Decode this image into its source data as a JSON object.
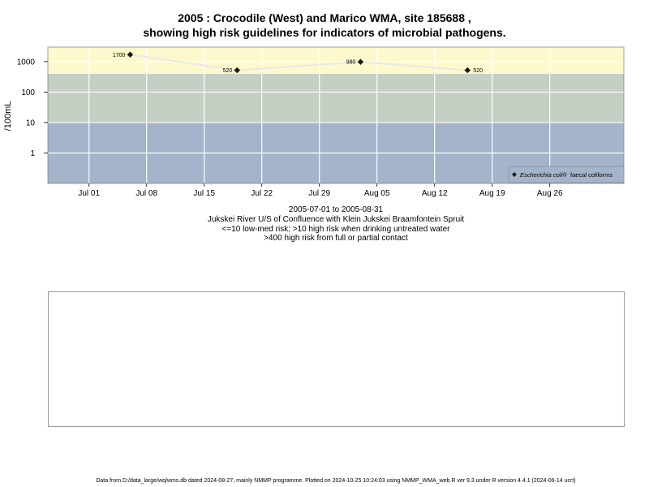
{
  "title": {
    "line1": "2005 : Crocodile (West) and Marico WMA, site 185688 ,",
    "line2": "showing high risk guidelines for indicators of microbial pathogens."
  },
  "subtitles": {
    "date_range": "2005-07-01 to 2005-08-31",
    "site_description": "Jukskei River U/S of Confluence with Klein Jukskei Braamfontein Spruit",
    "guideline_low": "<=10 low-med risk; >10 high risk when drinking untreated water",
    "guideline_high": ">400 high risk from full or partial contact"
  },
  "footer": "Data from D:/data_large/wq/wms.db dated 2024-08-27, mainly NMMP programme. Plotted on 2024-10-25 10:24:03 using NMMP_WMA_web.R ver 9.3 under R version 4.4.1 (2024-06-14 ucrt)",
  "colors": {
    "band_high": "#fef9cc",
    "band_mid": "#c5cfc4",
    "band_low": "#a3b4cb",
    "grid": "#ffffff",
    "line": "#e8e8e8",
    "marker": "#1a1a1a"
  },
  "chart_data": {
    "type": "line",
    "title": "2005 : Crocodile (West) and Marico WMA, site 185688 , showing high risk guidelines for indicators of microbial pathogens.",
    "ylabel": "/100mL",
    "xlabel": "",
    "y_scale": "log",
    "ylim": [
      0.1,
      3000
    ],
    "xlim": [
      "2005-06-26",
      "2005-09-04"
    ],
    "grid": true,
    "y_ticks": [
      1,
      10,
      100,
      1000
    ],
    "y_tick_labels": [
      "1",
      "10",
      "100",
      "1000"
    ],
    "x_ticks": [
      "2005-07-01",
      "2005-07-08",
      "2005-07-15",
      "2005-07-22",
      "2005-07-29",
      "2005-08-05",
      "2005-08-12",
      "2005-08-19",
      "2005-08-26"
    ],
    "x_tick_labels": [
      "Jul 01",
      "Jul 08",
      "Jul 15",
      "Jul 22",
      "Jul 29",
      "Aug 05",
      "Aug 12",
      "Aug 19",
      "Aug 26"
    ],
    "risk_bands": [
      {
        "from": 0.1,
        "to": 10,
        "color": "#a3b4cb"
      },
      {
        "from": 10,
        "to": 400,
        "color": "#c5cfc4"
      },
      {
        "from": 400,
        "to": 3000,
        "color": "#fef9cc"
      }
    ],
    "series": [
      {
        "name": "Escherichia coli",
        "marker": "diamond",
        "points": [
          {
            "x": "2005-07-06",
            "y": 1700,
            "label": "1700"
          },
          {
            "x": "2005-07-19",
            "y": 520,
            "label": "520"
          },
          {
            "x": "2005-08-03",
            "y": 980,
            "label": "980"
          },
          {
            "x": "2005-08-16",
            "y": 520,
            "label": "520"
          }
        ]
      },
      {
        "name": "faecal coliforms",
        "marker": "open-diamond",
        "points": []
      }
    ],
    "legend": {
      "placement": "bottom-right",
      "entries": [
        {
          "label": "Escherichia coli",
          "italic": true,
          "marker": "filled"
        },
        {
          "label": "faecal coliforms",
          "italic": false,
          "marker": "open"
        }
      ]
    }
  }
}
